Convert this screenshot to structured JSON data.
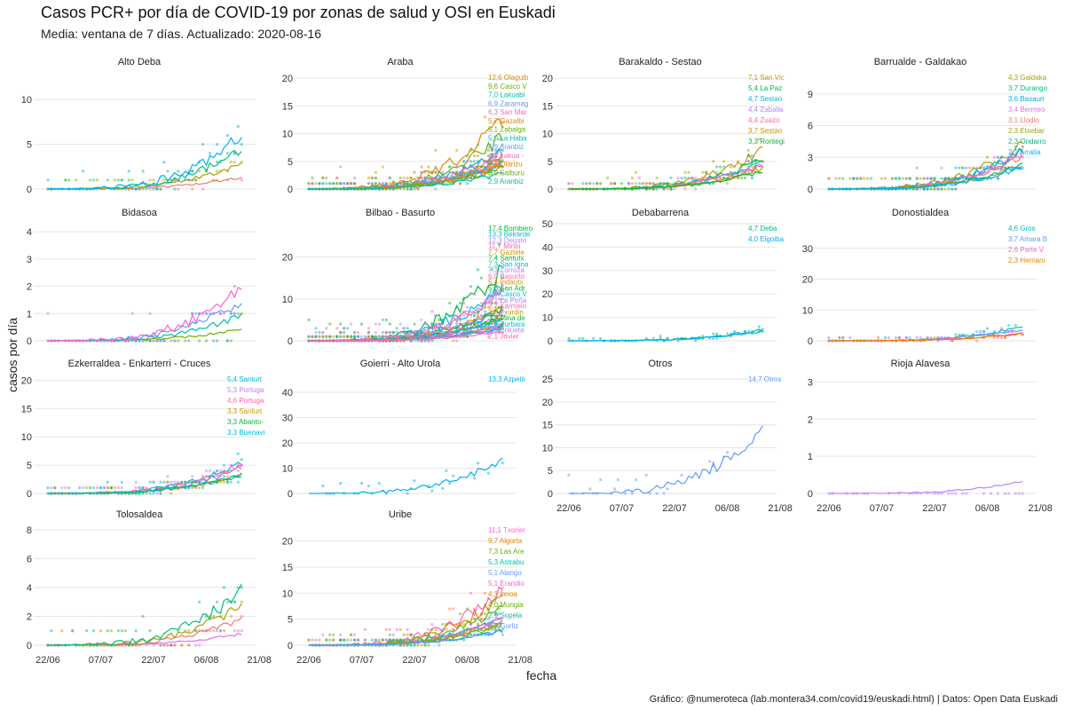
{
  "title": "Casos PCR+ por día de COVID-19 por zonas de salud y OSI en Euskadi",
  "subtitle": "Media: ventana de 7 días. Actualizado: 2020-08-16",
  "caption": "Gráfico: @numeroteca (lab.montera34.com/covid19/euskadi.html) | Datos: Open Data Euskadi",
  "chart_data": {
    "type": "line",
    "xlabel": "fecha",
    "ylabel": "casos por día",
    "x_ticks": [
      "22/06",
      "07/07",
      "22/07",
      "06/08",
      "21/08"
    ],
    "x_range": [
      "2020-06-20",
      "2020-08-25"
    ],
    "facets": [
      {
        "name": "Alto Deba",
        "ylim": [
          0,
          13
        ],
        "yticks": [
          0,
          5,
          10
        ],
        "labels": []
      },
      {
        "name": "Araba",
        "ylim": [
          0,
          21
        ],
        "yticks": [
          0,
          5,
          10,
          15,
          20
        ],
        "labels": [
          "12,6 Olaguib",
          "9,6 Casco V",
          "7,0 Lakuabi",
          "6,9 Zaramag",
          "6,3 San Mar",
          "5,7 Gazalbi",
          "5,1 Zabalga",
          "5,0 La Haba",
          "4,9 Aranbiz",
          "4,4 Lakua -",
          "4,4 Olarizu",
          "3,9 Salburu",
          "2,9 Aranbiz"
        ]
      },
      {
        "name": "Barakaldo - Sestao",
        "ylim": [
          0,
          21
        ],
        "yticks": [
          0,
          5,
          10,
          15,
          20
        ],
        "labels": [
          "7,1 San Vic",
          "5,4 La Paz",
          "4,7 Sestao",
          "4,4 Zaballa",
          "4,4 Zuazo",
          "3,7 Sestao",
          "3,3 Rontegi"
        ]
      },
      {
        "name": "Barrualde - Galdakao",
        "ylim": [
          0,
          11
        ],
        "yticks": [
          0,
          3,
          6,
          9
        ],
        "labels": [
          "4,3 Galdaka",
          "3,7 Durango",
          "3,6 Basauri",
          "3,4 Bermeo",
          "3,1 Llodio",
          "2,3 Etxebar",
          "2,3 Ondarro",
          "2,1 Arratia"
        ]
      },
      {
        "name": "Bidasoa",
        "ylim": [
          0,
          4.3
        ],
        "yticks": [
          0,
          1,
          2,
          3,
          4
        ],
        "labels": []
      },
      {
        "name": "Bilbao - Basurto",
        "ylim": [
          0,
          28
        ],
        "yticks": [
          0,
          10,
          20
        ],
        "labels": [
          "17,4 Bombero",
          "13,3 Bekarde",
          "12,3 Deusto",
          "11,7 Miribi",
          "7,7 Gaztele",
          "7,4 Santutx",
          "7,3 San Igna",
          "7,3 Zorroza",
          "6,0 Basurto",
          "5,4 Indautx",
          "5,6 San Adr",
          "4,9 Casco V",
          "4,1 La Peña",
          "3,7 Karmelo",
          "3,3 Txurdin",
          "3,3 Mina de",
          "2,9 Zurbara",
          "2,9 Bolueta",
          "2,1 Javier"
        ]
      },
      {
        "name": "Debabarrena",
        "ylim": [
          0,
          50
        ],
        "yticks": [
          0,
          10,
          20,
          30,
          40,
          50
        ],
        "labels": [
          "4,7 Deba",
          "4,0 Elgoiba"
        ]
      },
      {
        "name": "Donostialdea",
        "ylim": [
          0,
          38
        ],
        "yticks": [
          0,
          10,
          20,
          30
        ],
        "labels": [
          "4,6 Gros",
          "3,7 Amara B",
          "2,6 Parte V",
          "2,3 Hernani"
        ]
      },
      {
        "name": "Ezkerraldea - Enkarterri - Cruces",
        "ylim": [
          0,
          21
        ],
        "yticks": [
          0,
          5,
          10,
          15,
          20
        ],
        "labels": [
          "5,4 Santurt",
          "5,3 Portuga",
          "4,6 Portuga",
          "3,3 Santurt",
          "3,3 Abanto-",
          "3,3 Buenavi"
        ]
      },
      {
        "name": "Goierri - Alto Urola",
        "ylim": [
          0,
          47
        ],
        "yticks": [
          0,
          10,
          20,
          30,
          40
        ],
        "labels": [
          "13,3 Azpeiti"
        ]
      },
      {
        "name": "Otros",
        "ylim": [
          0,
          26
        ],
        "yticks": [
          0,
          5,
          10,
          15,
          20,
          25
        ],
        "labels": [
          "14,7 Otros"
        ]
      },
      {
        "name": "Rioja Alavesa",
        "ylim": [
          0,
          3.2
        ],
        "yticks": [
          0,
          1,
          2,
          3
        ],
        "labels": []
      },
      {
        "name": "Tolosaldea",
        "ylim": [
          0,
          8.3
        ],
        "yticks": [
          0,
          2,
          4,
          6,
          8
        ],
        "labels": []
      },
      {
        "name": "Uribe",
        "ylim": [
          0,
          23
        ],
        "yticks": [
          0,
          5,
          10,
          15,
          20
        ],
        "labels": [
          "11,1 Txorier",
          "9,7 Algorta",
          "7,3 Las Are",
          "5,3 Astrabu",
          "5,1 Alango",
          "5,1 Erandio",
          "4,3 Leioa",
          "4,0 Mungia",
          "2,9 Sopela",
          "2,7 Gorliz"
        ]
      }
    ]
  }
}
